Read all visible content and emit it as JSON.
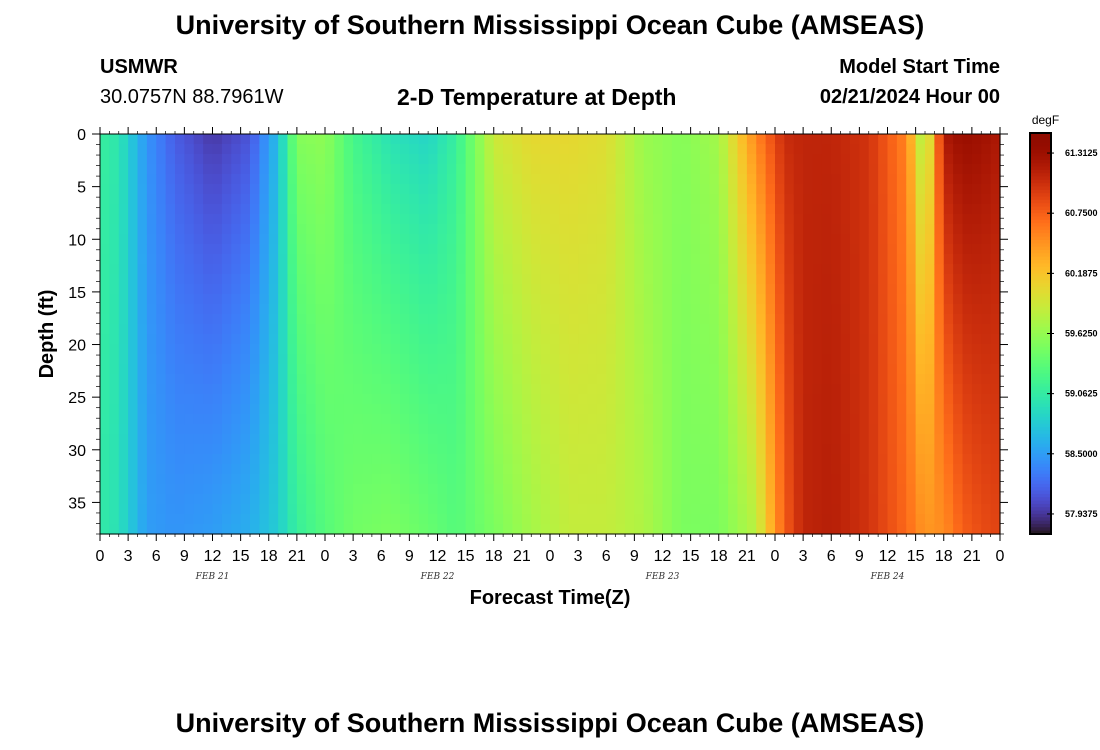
{
  "title": "University of Southern Mississippi Ocean Cube (AMSEAS)",
  "footer_title": "University of Southern Mississippi Ocean Cube (AMSEAS)",
  "station": {
    "name": "USMWR",
    "coords": "30.0757N  88.7961W"
  },
  "plot_title": "2-D Temperature at Depth",
  "model_start": {
    "label": "Model Start Time",
    "value": "02/21/2024 Hour 00"
  },
  "chart_data": {
    "type": "heatmap",
    "xlabel": "Forecast Time(Z)",
    "ylabel": "Depth (ft)",
    "x_hours": {
      "start": 0,
      "end": 96,
      "step": 3
    },
    "x_tick_labels": [
      "0",
      "3",
      "6",
      "9",
      "12",
      "15",
      "18",
      "21",
      "0",
      "3",
      "6",
      "9",
      "12",
      "15",
      "18",
      "21",
      "0",
      "3",
      "6",
      "9",
      "12",
      "15",
      "18",
      "21",
      "0",
      "3",
      "6",
      "9",
      "12",
      "15",
      "18",
      "21",
      "0"
    ],
    "date_labels": [
      {
        "label": "FEB 21",
        "hour": 12
      },
      {
        "label": "FEB 22",
        "hour": 36
      },
      {
        "label": "FEB 23",
        "hour": 60
      },
      {
        "label": "FEB 24",
        "hour": 84
      }
    ],
    "y_ticks": [
      0,
      5,
      10,
      15,
      20,
      25,
      30,
      35
    ],
    "ylim": [
      0,
      38
    ],
    "y_inverted": true,
    "colorbar": {
      "unit": "degF",
      "min": 57.75,
      "max": 61.5,
      "labels": [
        "61.3125",
        "60.7500",
        "60.1875",
        "59.6250",
        "59.0625",
        "58.5000",
        "57.9375"
      ],
      "colormap": "turbo"
    },
    "profile": {
      "hours": [
        0,
        2,
        5,
        8,
        12,
        16,
        19,
        21,
        24,
        27,
        31,
        35,
        38,
        42,
        46,
        50,
        54,
        58,
        62,
        66,
        70,
        73,
        75,
        78,
        82,
        86,
        88,
        90,
        92,
        94,
        96
      ],
      "surface": [
        59.1,
        59.0,
        58.45,
        58.15,
        57.95,
        58.1,
        58.7,
        59.55,
        59.6,
        59.2,
        58.95,
        58.85,
        59.1,
        59.9,
        60.05,
        60.05,
        60.0,
        59.65,
        59.55,
        59.7,
        60.55,
        61.05,
        61.1,
        61.1,
        61.0,
        60.55,
        59.6,
        61.2,
        61.35,
        61.3,
        61.2
      ],
      "bottom": [
        59.05,
        58.95,
        58.5,
        58.45,
        58.5,
        58.6,
        58.8,
        59.1,
        59.3,
        59.45,
        59.5,
        59.4,
        59.3,
        59.5,
        59.7,
        59.85,
        59.85,
        59.75,
        59.5,
        59.5,
        59.8,
        60.75,
        61.1,
        61.15,
        61.0,
        60.7,
        60.45,
        60.5,
        60.75,
        60.85,
        60.9
      ]
    }
  }
}
